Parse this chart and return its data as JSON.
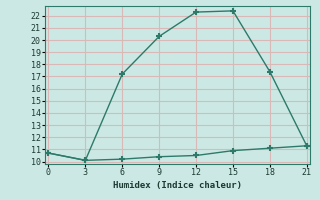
{
  "xlabel": "Humidex (Indice chaleur)",
  "bg_color": "#cce8e4",
  "line_color": "#2d7a6a",
  "grid_color": "#d9b8b8",
  "line1_x": [
    0,
    3,
    6,
    9,
    12,
    15,
    18,
    21
  ],
  "line1_y": [
    10.7,
    10.1,
    17.2,
    20.3,
    22.3,
    22.4,
    17.4,
    11.3
  ],
  "line2_x": [
    0,
    3,
    6,
    9,
    12,
    15,
    18,
    21
  ],
  "line2_y": [
    10.7,
    10.1,
    10.2,
    10.4,
    10.5,
    10.9,
    11.1,
    11.3
  ],
  "xlim": [
    -0.3,
    21.3
  ],
  "ylim": [
    9.8,
    22.8
  ],
  "xticks": [
    0,
    3,
    6,
    9,
    12,
    15,
    18,
    21
  ],
  "yticks": [
    10,
    11,
    12,
    13,
    14,
    15,
    16,
    17,
    18,
    19,
    20,
    21,
    22
  ]
}
